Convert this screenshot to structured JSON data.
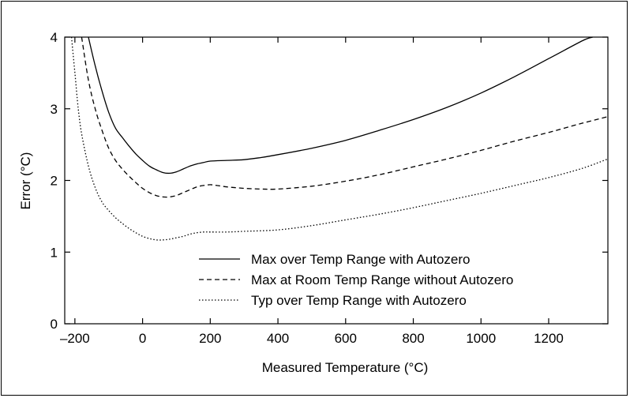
{
  "chart_data": {
    "type": "line",
    "title": "",
    "xlabel": "Measured Temperature (°C)",
    "ylabel": "Error (°C)",
    "xlim": [
      -230,
      1375
    ],
    "ylim": [
      0,
      4
    ],
    "xticks": [
      -200,
      0,
      200,
      400,
      600,
      800,
      1000,
      1200
    ],
    "xtick_labels": [
      "–200",
      "0",
      "200",
      "400",
      "600",
      "800",
      "1000",
      "1200"
    ],
    "yticks": [
      0,
      1,
      2,
      3,
      4
    ],
    "ytick_labels": [
      "0",
      "1",
      "2",
      "3",
      "4"
    ],
    "grid": false,
    "legend_position": "bottom-center",
    "series": [
      {
        "name": "Max over Temp Range with Autozero",
        "dash": "solid",
        "x": [
          -160,
          -140,
          -120,
          -100,
          -80,
          -60,
          -40,
          -20,
          0,
          20,
          40,
          60,
          80,
          100,
          120,
          140,
          160,
          180,
          200,
          250,
          300,
          350,
          400,
          500,
          600,
          700,
          800,
          900,
          1000,
          1100,
          1200,
          1300,
          1330
        ],
        "y": [
          4.0,
          3.6,
          3.25,
          2.95,
          2.73,
          2.6,
          2.48,
          2.37,
          2.28,
          2.2,
          2.15,
          2.11,
          2.1,
          2.12,
          2.16,
          2.2,
          2.23,
          2.25,
          2.27,
          2.28,
          2.29,
          2.32,
          2.36,
          2.45,
          2.56,
          2.7,
          2.85,
          3.02,
          3.22,
          3.45,
          3.7,
          3.95,
          4.0
        ]
      },
      {
        "name": "Max at Room Temp Range without Autozero",
        "dash": "dashed",
        "x": [
          -180,
          -160,
          -140,
          -120,
          -100,
          -80,
          -60,
          -40,
          -20,
          0,
          20,
          40,
          60,
          80,
          100,
          120,
          140,
          160,
          180,
          200,
          220,
          250,
          300,
          350,
          400,
          500,
          600,
          700,
          800,
          900,
          1000,
          1100,
          1200,
          1300,
          1375
        ],
        "y": [
          4.0,
          3.4,
          3.0,
          2.7,
          2.45,
          2.28,
          2.16,
          2.06,
          1.97,
          1.89,
          1.83,
          1.79,
          1.77,
          1.77,
          1.79,
          1.83,
          1.87,
          1.91,
          1.93,
          1.94,
          1.93,
          1.91,
          1.89,
          1.88,
          1.88,
          1.92,
          1.99,
          2.08,
          2.19,
          2.3,
          2.42,
          2.55,
          2.67,
          2.8,
          2.89
        ]
      },
      {
        "name": "Typ over Temp Range with Autozero",
        "dash": "dotted",
        "x": [
          -210,
          -200,
          -190,
          -180,
          -160,
          -140,
          -120,
          -100,
          -80,
          -60,
          -40,
          -20,
          0,
          20,
          40,
          60,
          80,
          100,
          120,
          140,
          160,
          180,
          200,
          250,
          300,
          400,
          500,
          600,
          700,
          800,
          900,
          1000,
          1100,
          1200,
          1300,
          1375
        ],
        "y": [
          4.0,
          3.5,
          3.0,
          2.65,
          2.2,
          1.9,
          1.7,
          1.58,
          1.48,
          1.4,
          1.33,
          1.27,
          1.22,
          1.19,
          1.17,
          1.17,
          1.18,
          1.2,
          1.22,
          1.25,
          1.27,
          1.28,
          1.28,
          1.28,
          1.29,
          1.31,
          1.37,
          1.45,
          1.53,
          1.62,
          1.72,
          1.82,
          1.93,
          2.04,
          2.17,
          2.3
        ]
      }
    ]
  }
}
